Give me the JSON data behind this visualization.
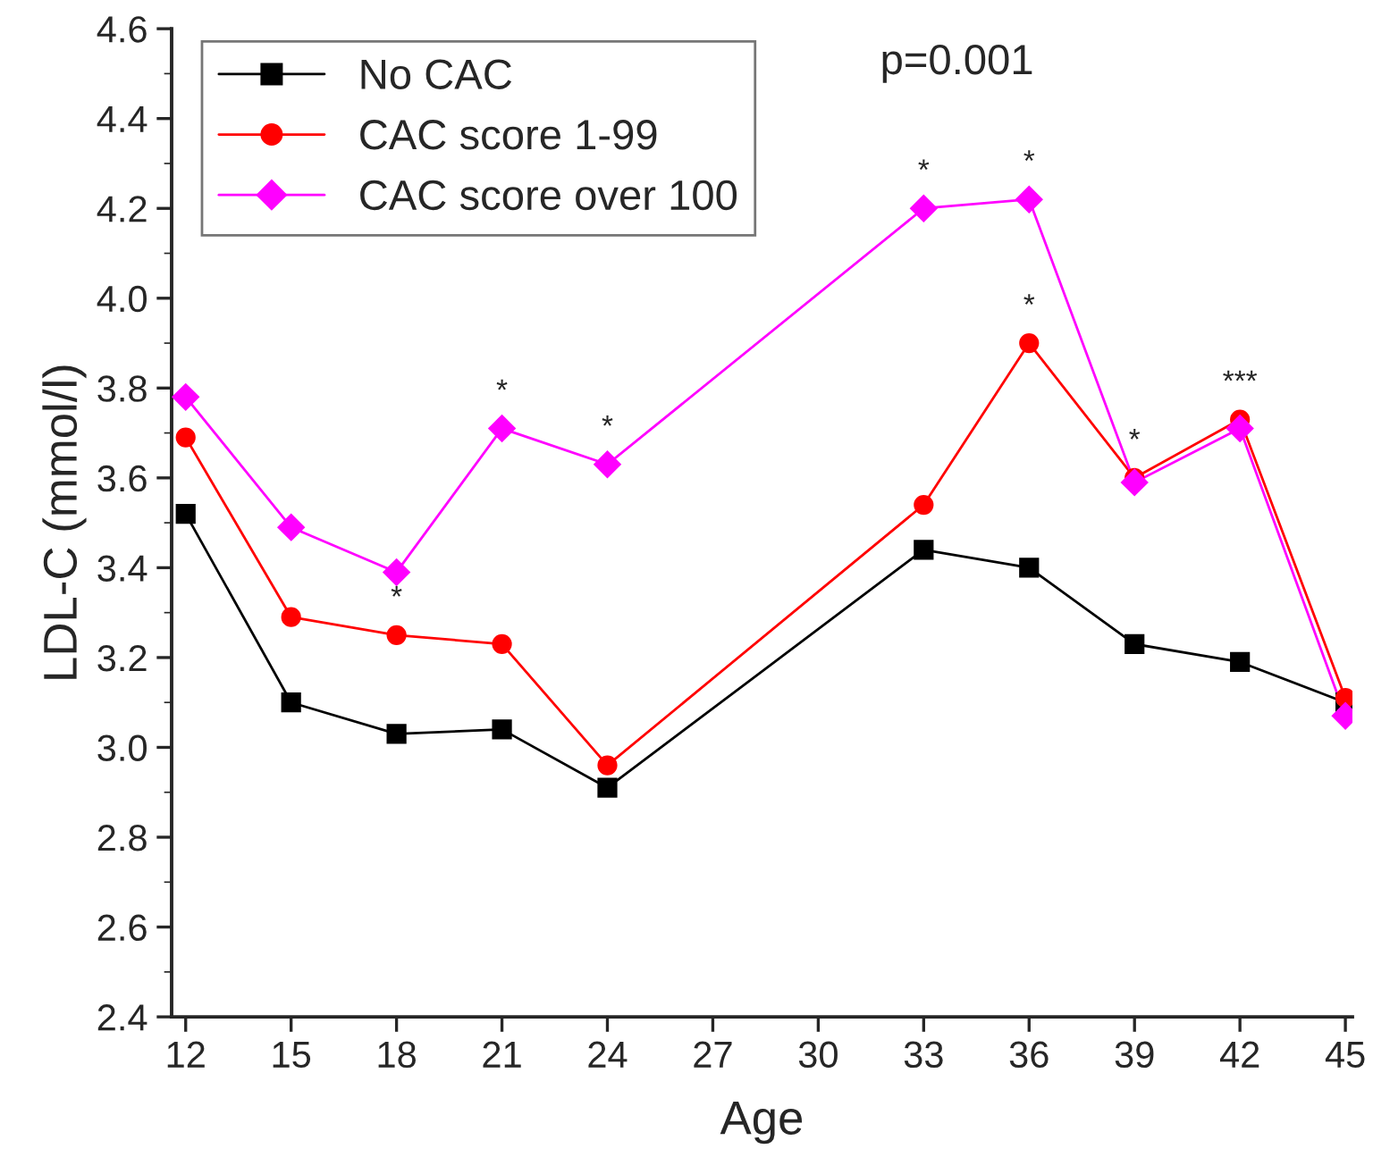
{
  "chart_data": {
    "type": "line",
    "xlabel": "Age",
    "ylabel": "LDL-C (mmol/l)",
    "x": [
      12,
      15,
      18,
      21,
      24,
      33,
      36,
      39,
      42,
      45
    ],
    "series": [
      {
        "name": "No CAC",
        "color": "#000000",
        "marker": "square",
        "values": [
          3.52,
          3.1,
          3.03,
          3.04,
          2.91,
          3.44,
          3.4,
          3.23,
          3.19,
          3.1
        ]
      },
      {
        "name": "CAC score 1-99",
        "color": "#ff0000",
        "marker": "circle",
        "values": [
          3.69,
          3.29,
          3.25,
          3.23,
          2.96,
          3.54,
          3.9,
          3.6,
          3.73,
          3.11
        ]
      },
      {
        "name": "CAC score over 100",
        "color": "#ff00ff",
        "marker": "diamond",
        "values": [
          3.78,
          3.49,
          3.39,
          3.71,
          3.63,
          4.2,
          4.22,
          3.59,
          3.71,
          3.07
        ]
      }
    ],
    "xlim": [
      11.6,
      45.2
    ],
    "xticks": [
      12,
      15,
      18,
      21,
      24,
      27,
      30,
      33,
      36,
      39,
      42,
      45
    ],
    "ylim": [
      2.4,
      4.6
    ],
    "yticks": [
      {
        "value": 2.4,
        "label": "2.4"
      },
      {
        "value": 2.6,
        "label": "2.6"
      },
      {
        "value": 2.8,
        "label": "2.8"
      },
      {
        "value": 3.0,
        "label": "3.0"
      },
      {
        "value": 3.2,
        "label": "3.2"
      },
      {
        "value": 3.4,
        "label": "3.4"
      },
      {
        "value": 3.6,
        "label": "3.6"
      },
      {
        "value": 3.8,
        "label": "3.8"
      },
      {
        "value": 4.0,
        "label": "4.0"
      },
      {
        "value": 4.2,
        "label": "4.2"
      },
      {
        "value": 4.4,
        "label": "4.4"
      },
      {
        "value": 4.6,
        "label": "4.6"
      }
    ],
    "grid": false,
    "legend": "top left",
    "line_style": "solid",
    "annotations": [
      "p=0.001",
      {
        "text": "*",
        "x": 18,
        "y": 3.25
      },
      {
        "text": "*",
        "x": 21,
        "y": 3.71
      },
      {
        "text": "*",
        "x": 24,
        "y": 3.63
      },
      {
        "text": "*",
        "x": 33,
        "y": 4.2
      },
      {
        "text": "*",
        "x": 36,
        "y": 4.22
      },
      {
        "text": "*",
        "x": 36,
        "y": 3.9
      },
      {
        "text": "*",
        "x": 39,
        "y": 3.6
      },
      {
        "text": "***",
        "x": 42,
        "y": 3.73
      }
    ]
  }
}
